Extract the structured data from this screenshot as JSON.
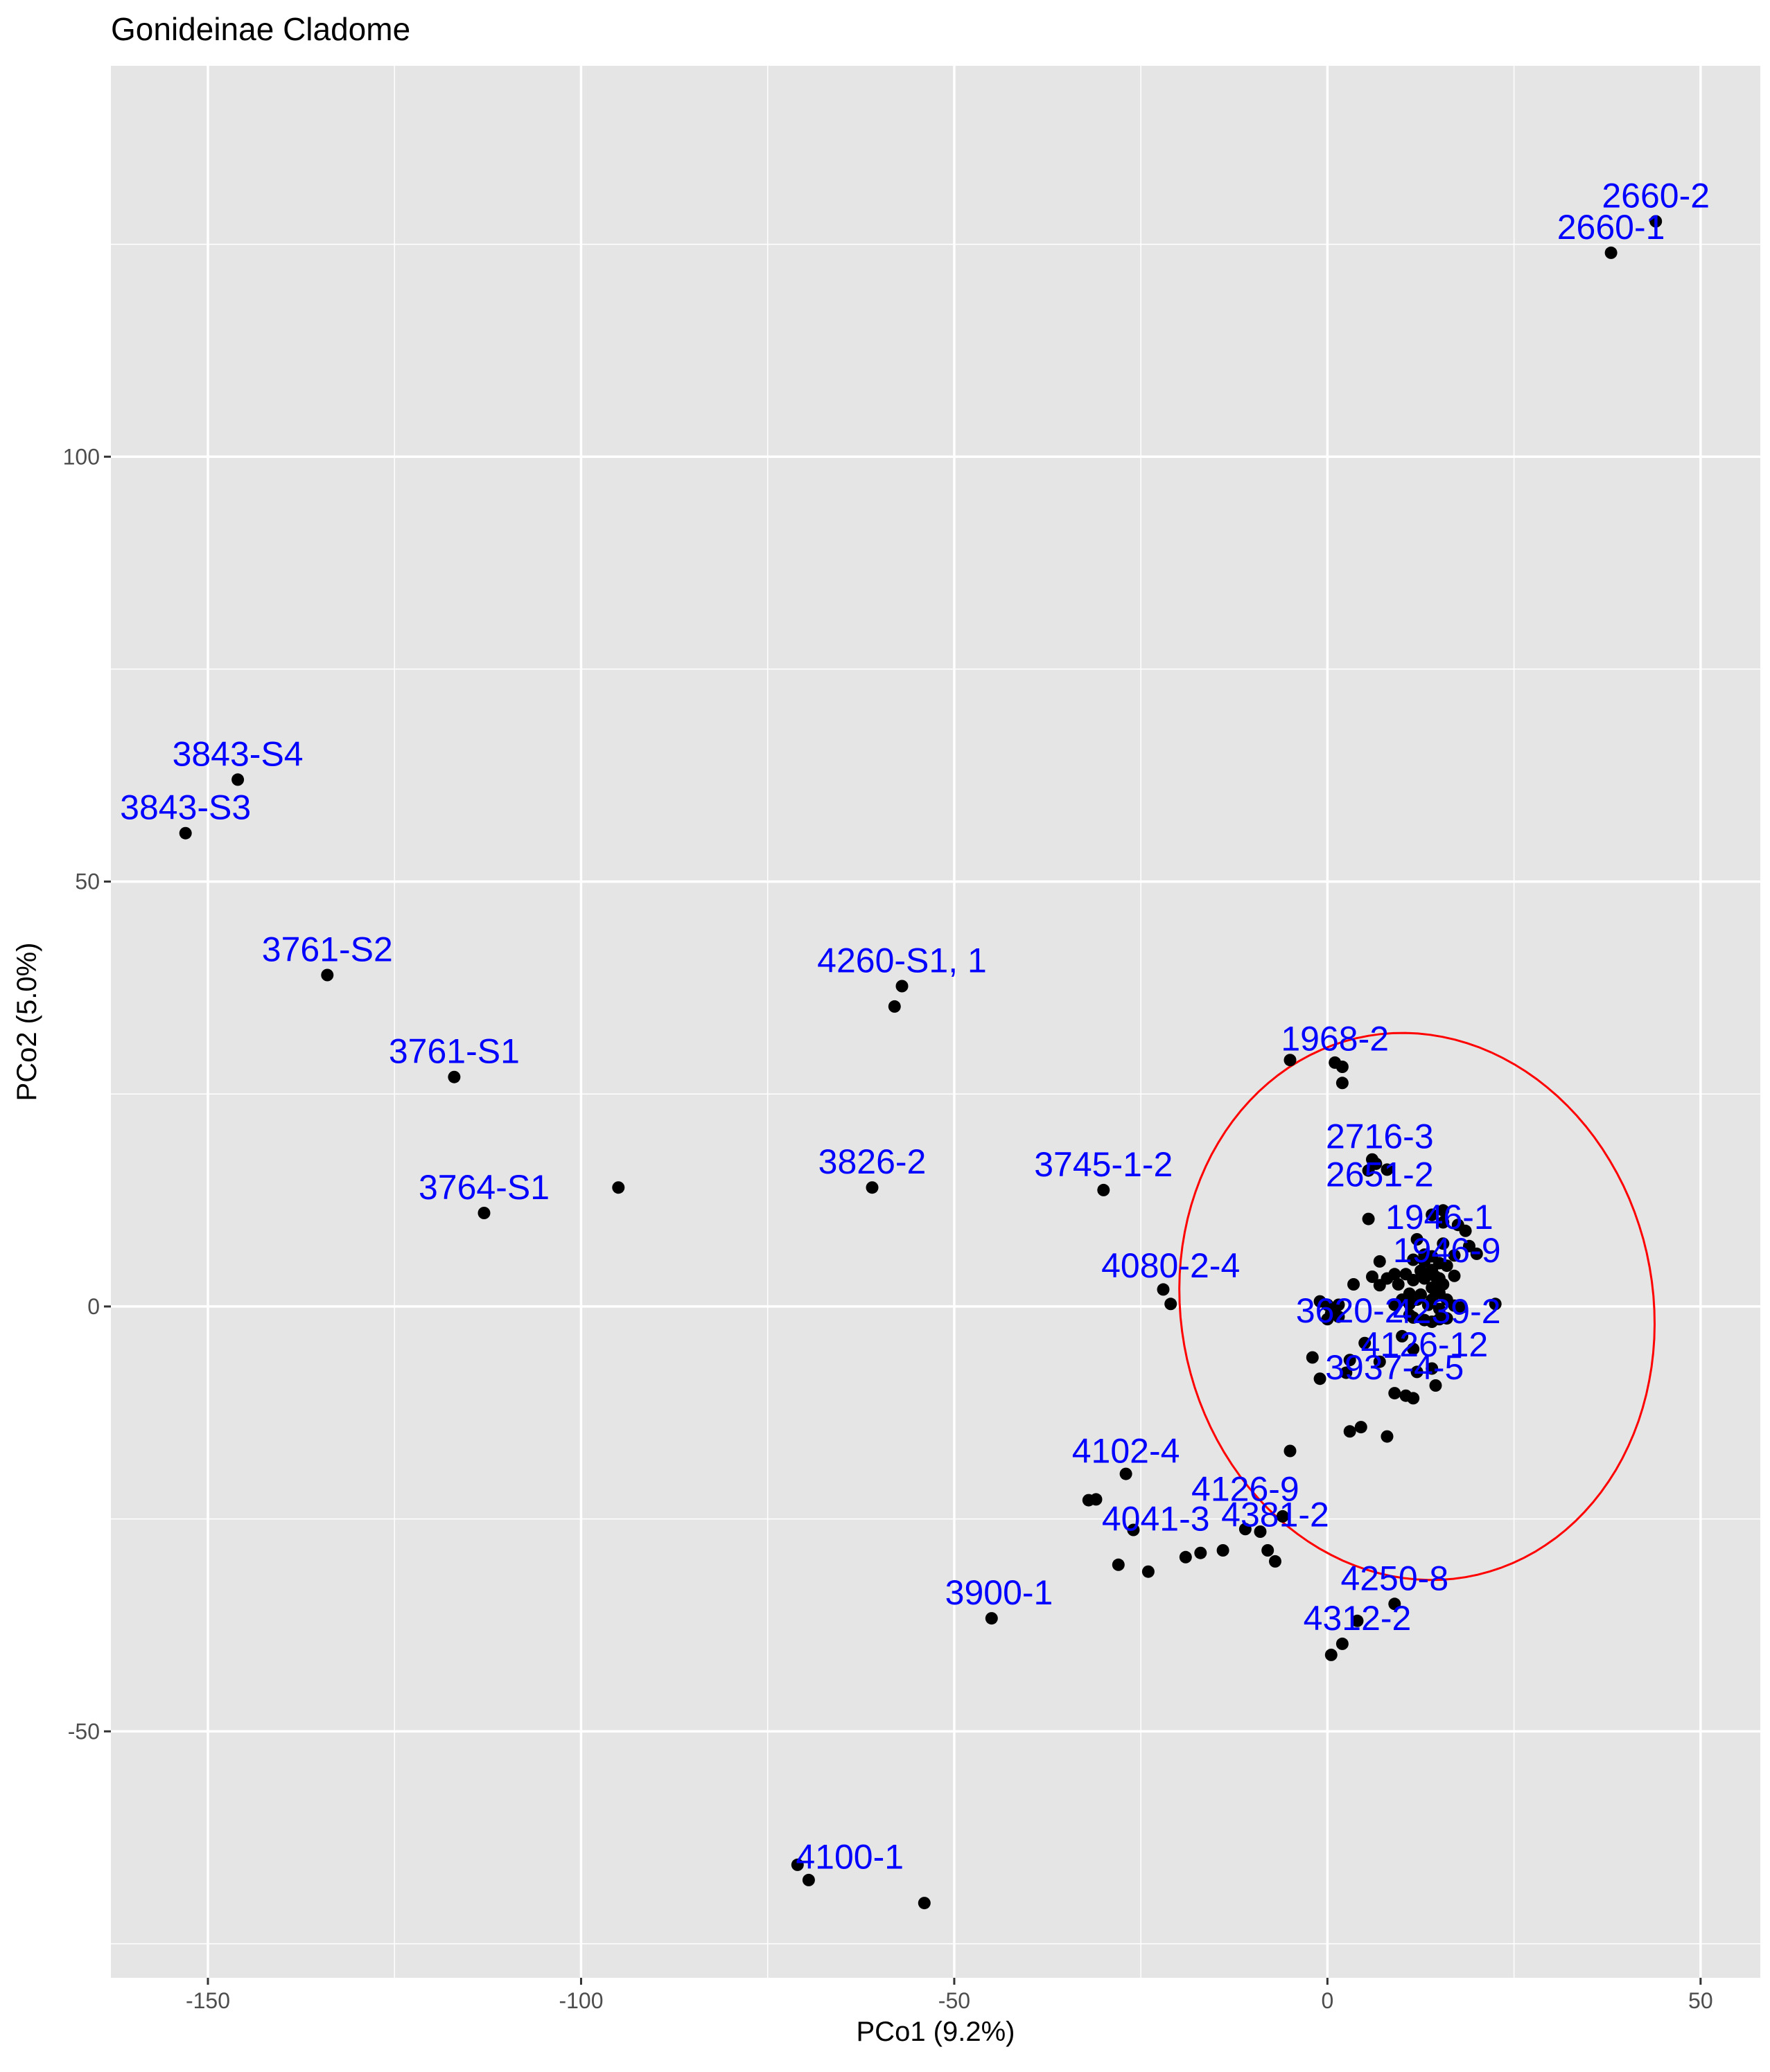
{
  "chart_data": {
    "type": "scatter",
    "title": "Gonideinae Cladome",
    "xlabel": "PCo1 (9.2%)",
    "ylabel": "PCo2 (5.0%)",
    "xlim": [
      -163,
      58
    ],
    "ylim": [
      -79,
      146
    ],
    "x_ticks": [
      -150,
      -100,
      -50,
      0,
      50
    ],
    "y_ticks": [
      -50,
      0,
      50,
      100
    ],
    "grid": true,
    "background": "#e5e5e5",
    "grid_color": "#ffffff",
    "point_color": "#000000",
    "label_color": "#0000ff",
    "ellipse": {
      "center": [
        12,
        0
      ],
      "rx": 31,
      "ry": 33,
      "rotation_deg": 40,
      "color": "#ff0000"
    },
    "labels": [
      {
        "text": "2660-2",
        "x": 44,
        "y": 127.7
      },
      {
        "text": "2660-1",
        "x": 38,
        "y": 124
      },
      {
        "text": "3843-S4",
        "x": -146,
        "y": 62
      },
      {
        "text": "3843-S3",
        "x": -153,
        "y": 55.7
      },
      {
        "text": "3761-S2",
        "x": -134,
        "y": 39
      },
      {
        "text": "4260-S1, 1",
        "x": -57,
        "y": 37.7
      },
      {
        "text": "3761-S1",
        "x": -117,
        "y": 27
      },
      {
        "text": "1968-2",
        "x": 1,
        "y": 28.5
      },
      {
        "text": "2716-3",
        "x": 7,
        "y": 17
      },
      {
        "text": "3826-2",
        "x": -61,
        "y": 14
      },
      {
        "text": "3745-1-2",
        "x": -30,
        "y": 13.7
      },
      {
        "text": "3764-S1",
        "x": -113,
        "y": 11
      },
      {
        "text": "2651-2",
        "x": 7,
        "y": 12.5
      },
      {
        "text": "1946-1",
        "x": 15,
        "y": 7.5
      },
      {
        "text": "1946-9",
        "x": 16,
        "y": 3.6
      },
      {
        "text": "4080-2-4",
        "x": -21,
        "y": 1.8
      },
      {
        "text": "3620-2",
        "x": 3,
        "y": -3.5
      },
      {
        "text": "4239-2",
        "x": 16,
        "y": -3.6
      },
      {
        "text": "4126-12",
        "x": 13,
        "y": -7.5
      },
      {
        "text": "3937-4-5",
        "x": 9,
        "y": -10.2
      },
      {
        "text": "4102-4",
        "x": -27,
        "y": -20
      },
      {
        "text": "4126-9",
        "x": -11,
        "y": -24.5
      },
      {
        "text": "4381-2",
        "x": -7,
        "y": -27.5
      },
      {
        "text": "4041-3",
        "x": -23,
        "y": -28
      },
      {
        "text": "4250-8",
        "x": 9,
        "y": -35
      },
      {
        "text": "3900-1",
        "x": -44,
        "y": -36.7
      },
      {
        "text": "4312-2",
        "x": 4,
        "y": -39.7
      },
      {
        "text": "4100-1",
        "x": -64,
        "y": -67.8
      }
    ],
    "points": [
      [
        38,
        124
      ],
      [
        44,
        127.7
      ],
      [
        -146,
        62
      ],
      [
        -153,
        55.7
      ],
      [
        -134,
        39
      ],
      [
        -117,
        27
      ],
      [
        -113,
        11
      ],
      [
        -95,
        14
      ],
      [
        -57,
        37.7
      ],
      [
        -58,
        35.3
      ],
      [
        -61,
        14
      ],
      [
        -30,
        13.7
      ],
      [
        -5,
        29
      ],
      [
        1,
        28.7
      ],
      [
        2,
        28.2
      ],
      [
        2,
        26.3
      ],
      [
        6,
        17.3
      ],
      [
        6.5,
        16.8
      ],
      [
        8,
        16.1
      ],
      [
        5.5,
        16
      ],
      [
        5.5,
        10.3
      ],
      [
        -22,
        2
      ],
      [
        -21,
        0.3
      ],
      [
        -54,
        -70.2
      ],
      [
        -71,
        -65.7
      ],
      [
        -69.5,
        -67.5
      ],
      [
        -45,
        -36.7
      ],
      [
        -27,
        -19.7
      ],
      [
        -31,
        -22.7
      ],
      [
        -32,
        -22.8
      ],
      [
        -26,
        -26.3
      ],
      [
        -24,
        -31.2
      ],
      [
        -28,
        -30.4
      ],
      [
        -19,
        -29.5
      ],
      [
        -17,
        -29
      ],
      [
        -14,
        -28.7
      ],
      [
        -11,
        -26.2
      ],
      [
        -9,
        -26.5
      ],
      [
        -8,
        -28.7
      ],
      [
        -7,
        -30
      ],
      [
        -6,
        -24.7
      ],
      [
        -5,
        -17
      ],
      [
        0.5,
        -41
      ],
      [
        2,
        -39.7
      ],
      [
        4,
        -37
      ],
      [
        9,
        -35
      ],
      [
        3,
        -14.7
      ],
      [
        4.5,
        -14.2
      ],
      [
        8,
        -15.3
      ],
      [
        -2,
        -6
      ],
      [
        -1,
        -8.5
      ],
      [
        2.5,
        -7.8
      ],
      [
        3,
        -6.3
      ],
      [
        5,
        -4.3
      ],
      [
        7,
        -6.5
      ],
      [
        9,
        -10.2
      ],
      [
        10.5,
        -10.5
      ],
      [
        11.5,
        -10.8
      ],
      [
        12,
        -7.7
      ],
      [
        14,
        -7.3
      ],
      [
        14.5,
        -9.3
      ],
      [
        10,
        -3.5
      ],
      [
        11.5,
        -5
      ],
      [
        -1,
        0.6
      ],
      [
        0,
        0.2
      ],
      [
        0.5,
        -0.8
      ],
      [
        1.5,
        0.2
      ],
      [
        1.5,
        -1.2
      ],
      [
        0,
        -1.5
      ],
      [
        3.5,
        2.6
      ],
      [
        6,
        3.5
      ],
      [
        7,
        5.3
      ],
      [
        7,
        2.5
      ],
      [
        8,
        3.3
      ],
      [
        9,
        3.8
      ],
      [
        9.5,
        2.6
      ],
      [
        9,
        0.2
      ],
      [
        10,
        0.8
      ],
      [
        10.5,
        3.8
      ],
      [
        11,
        1.5
      ],
      [
        11,
        0.3
      ],
      [
        11.5,
        5.5
      ],
      [
        11.5,
        3.1
      ],
      [
        12,
        0.8
      ],
      [
        12.5,
        4.2
      ],
      [
        12.5,
        1.4
      ],
      [
        13,
        6.1
      ],
      [
        13,
        5.3
      ],
      [
        13,
        3.3
      ],
      [
        13.5,
        0.2
      ],
      [
        14,
        5.9
      ],
      [
        14,
        4.3
      ],
      [
        14,
        2.2
      ],
      [
        14,
        0.8
      ],
      [
        14.5,
        1.8
      ],
      [
        14.5,
        3.5
      ],
      [
        15,
        5.1
      ],
      [
        15,
        3.3
      ],
      [
        15,
        1.6
      ],
      [
        15,
        -0.3
      ],
      [
        15.5,
        11.3
      ],
      [
        15.5,
        9.9
      ],
      [
        15.5,
        7.4
      ],
      [
        15.5,
        2.6
      ],
      [
        16,
        4.8
      ],
      [
        16,
        0.8
      ],
      [
        16,
        -1.4
      ],
      [
        17,
        6
      ],
      [
        17.5,
        9.6
      ],
      [
        17,
        3.6
      ],
      [
        17,
        0.1
      ],
      [
        18,
        -0.1
      ],
      [
        18.5,
        8.9
      ],
      [
        19,
        7.1
      ],
      [
        20,
        6.2
      ],
      [
        22.5,
        0.3
      ],
      [
        14,
        10.8
      ],
      [
        12,
        7.9
      ],
      [
        11,
        -1
      ],
      [
        11.5,
        -1.3
      ],
      [
        13,
        -1.6
      ],
      [
        14,
        -1.8
      ],
      [
        15,
        -1.5
      ]
    ]
  }
}
